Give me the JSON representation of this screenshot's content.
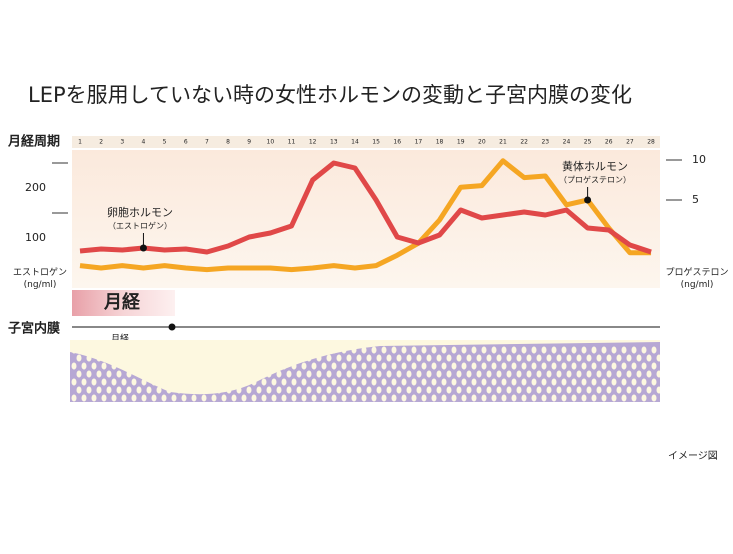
{
  "chart_data": {
    "type": "line",
    "title": "LEPを服用していない時の女性ホルモンの変動と子宮内膜の変化",
    "cycle_label": "月経周期",
    "categories": [
      "1",
      "2",
      "3",
      "4",
      "5",
      "6",
      "7",
      "8",
      "9",
      "10",
      "11",
      "12",
      "13",
      "14",
      "15",
      "16",
      "17",
      "18",
      "19",
      "20",
      "21",
      "22",
      "23",
      "24",
      "25",
      "26",
      "27",
      "28"
    ],
    "series": [
      {
        "name": "卵胞ホルモン",
        "sublabel": "（エストロゲン）",
        "color": "#e04848",
        "axis": "y",
        "values": [
          74,
          78,
          76,
          80,
          76,
          78,
          72,
          84,
          102,
          110,
          124,
          216,
          250,
          240,
          176,
          102,
          90,
          106,
          156,
          140,
          146,
          152,
          146,
          156,
          120,
          116,
          86,
          72
        ]
      },
      {
        "name": "黄体ホルモン",
        "sublabel": "（プロゲステロン）",
        "color": "#f5a623",
        "axis": "y2",
        "values": [
          -3.2,
          -3.5,
          -3.2,
          -3.5,
          -3.2,
          -3.5,
          -3.7,
          -3.5,
          -3.5,
          -3.5,
          -3.7,
          -3.5,
          -3.2,
          -3.5,
          -3.2,
          -1.9,
          -0.4,
          2.5,
          6.6,
          6.8,
          9.9,
          7.8,
          8,
          4.4,
          5,
          1.5,
          -1.6,
          -1.6
        ]
      }
    ],
    "ylabel": "エストロゲン\n(ng/ml)",
    "y2label": "プロゲステロン\n(ng/ml)",
    "ylim": [
      0,
      280
    ],
    "yticks": [
      100,
      200
    ],
    "y2lim": [
      -6,
      11.5
    ],
    "y2ticks": [
      5,
      10
    ],
    "menstruation_band": "月経",
    "endometrium_label": "子宮内膜",
    "endometrium_marker": "月経",
    "note": "イメージ図"
  }
}
